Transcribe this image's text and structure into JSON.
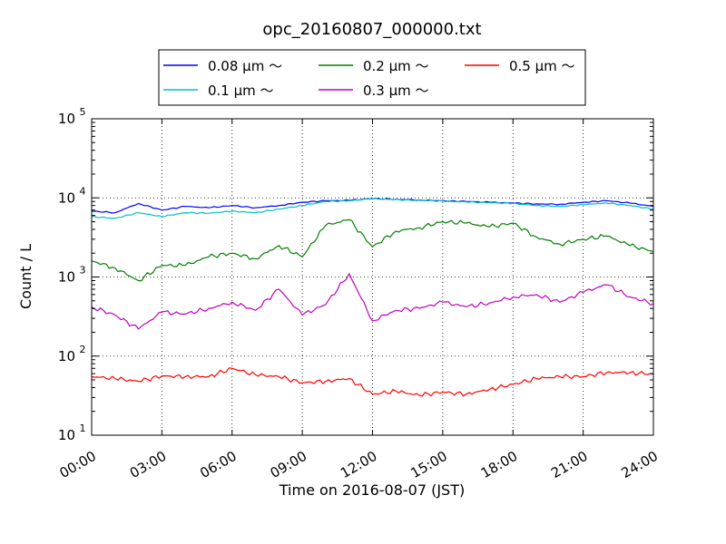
{
  "chart_data": {
    "type": "line",
    "title": "opc_20160807_000000.txt",
    "xlabel": "Time on 2016-08-07 (JST)",
    "ylabel": "Count / L",
    "yscale": "log",
    "xlim": [
      "00:00",
      "24:00"
    ],
    "ylim": [
      10,
      100000
    ],
    "grid": true,
    "legend_placement": "top-center",
    "x_ticks": [
      "00:00",
      "03:00",
      "06:00",
      "09:00",
      "12:00",
      "15:00",
      "18:00",
      "21:00",
      "24:00"
    ],
    "y_ticks": [
      {
        "value": 10,
        "base": "10",
        "exp": "1"
      },
      {
        "value": 100,
        "base": "10",
        "exp": "2"
      },
      {
        "value": 1000,
        "base": "10",
        "exp": "3"
      },
      {
        "value": 10000,
        "base": "10",
        "exp": "4"
      },
      {
        "value": 100000,
        "base": "10",
        "exp": "5"
      }
    ],
    "x": [
      "00:00",
      "01:00",
      "02:00",
      "03:00",
      "04:00",
      "05:00",
      "06:00",
      "07:00",
      "08:00",
      "09:00",
      "10:00",
      "11:00",
      "12:00",
      "13:00",
      "14:00",
      "15:00",
      "16:00",
      "17:00",
      "18:00",
      "19:00",
      "20:00",
      "21:00",
      "22:00",
      "23:00",
      "24:00"
    ],
    "series": [
      {
        "name": "0.08 μm ～",
        "color": "#0000ff",
        "values": [
          6800,
          6500,
          8500,
          7000,
          7800,
          7500,
          8000,
          7500,
          8000,
          8800,
          9200,
          9300,
          9800,
          9600,
          9400,
          9200,
          9000,
          8800,
          8600,
          8400,
          8300,
          8800,
          9200,
          8600,
          7800
        ]
      },
      {
        "name": "0.1 μm ～",
        "color": "#00bfbf",
        "values": [
          5800,
          5500,
          6500,
          5800,
          6500,
          6400,
          6800,
          6500,
          7200,
          8000,
          9000,
          9200,
          9800,
          9500,
          9300,
          9100,
          8900,
          8700,
          8500,
          8000,
          7800,
          8200,
          8600,
          8000,
          7200
        ]
      },
      {
        "name": "0.2 μm ～",
        "color": "#008000",
        "values": [
          1600,
          1300,
          900,
          1400,
          1400,
          1800,
          2000,
          1700,
          2500,
          1800,
          4500,
          5300,
          2400,
          3800,
          4200,
          5000,
          4800,
          4300,
          4800,
          3200,
          2600,
          3000,
          3300,
          2500,
          2100
        ]
      },
      {
        "name": "0.3 μm ～",
        "color": "#bf00bf",
        "values": [
          420,
          330,
          220,
          360,
          340,
          400,
          480,
          380,
          700,
          330,
          450,
          1100,
          280,
          380,
          400,
          480,
          420,
          470,
          560,
          600,
          480,
          640,
          800,
          560,
          460
        ]
      },
      {
        "name": "0.5 μm ～",
        "color": "#ff0000",
        "values": [
          55,
          52,
          48,
          56,
          55,
          55,
          70,
          58,
          55,
          46,
          48,
          52,
          33,
          36,
          32,
          35,
          33,
          38,
          44,
          52,
          55,
          55,
          62,
          62,
          59
        ]
      }
    ]
  }
}
